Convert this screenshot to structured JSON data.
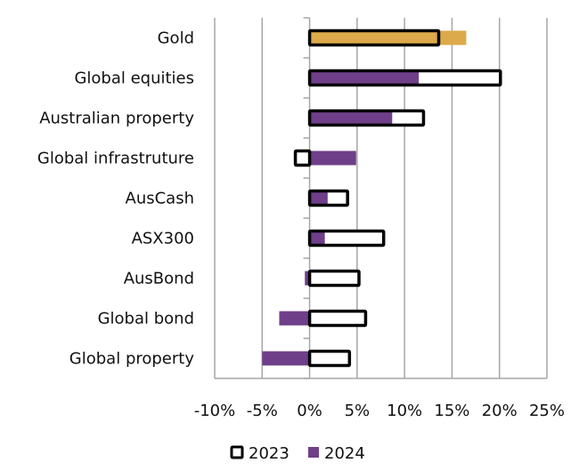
{
  "chart_data": {
    "type": "bar",
    "orientation": "horizontal",
    "title": "",
    "xlabel": "",
    "ylabel": "",
    "xlim": [
      -10,
      25
    ],
    "x_ticks": [
      -10,
      -5,
      0,
      5,
      10,
      15,
      20,
      25
    ],
    "x_tick_labels": [
      "-10%",
      "-5%",
      "0%",
      "5%",
      "10%",
      "15%",
      "20%",
      "25%"
    ],
    "grid": "vertical",
    "legend_position": "bottom",
    "categories": [
      "Gold",
      "Global equities",
      "Australian property",
      "Global infrastruture",
      "AusCash",
      "ASX300",
      "AusBond",
      "Global bond",
      "Global property"
    ],
    "series": [
      {
        "name": "2023",
        "style": "outline",
        "color": "#000000",
        "values": [
          13.6,
          20.1,
          12.0,
          -1.5,
          4.0,
          7.8,
          5.2,
          5.9,
          4.2
        ]
      },
      {
        "name": "2024",
        "style": "filled",
        "color": "#6f3f8a",
        "values": [
          16.5,
          11.5,
          8.7,
          4.9,
          1.9,
          1.6,
          -0.5,
          -3.2,
          -5.0
        ]
      }
    ],
    "highlight": {
      "category": "Gold",
      "color": "#dcaa4a"
    },
    "legend": [
      "2023",
      "2024"
    ]
  }
}
